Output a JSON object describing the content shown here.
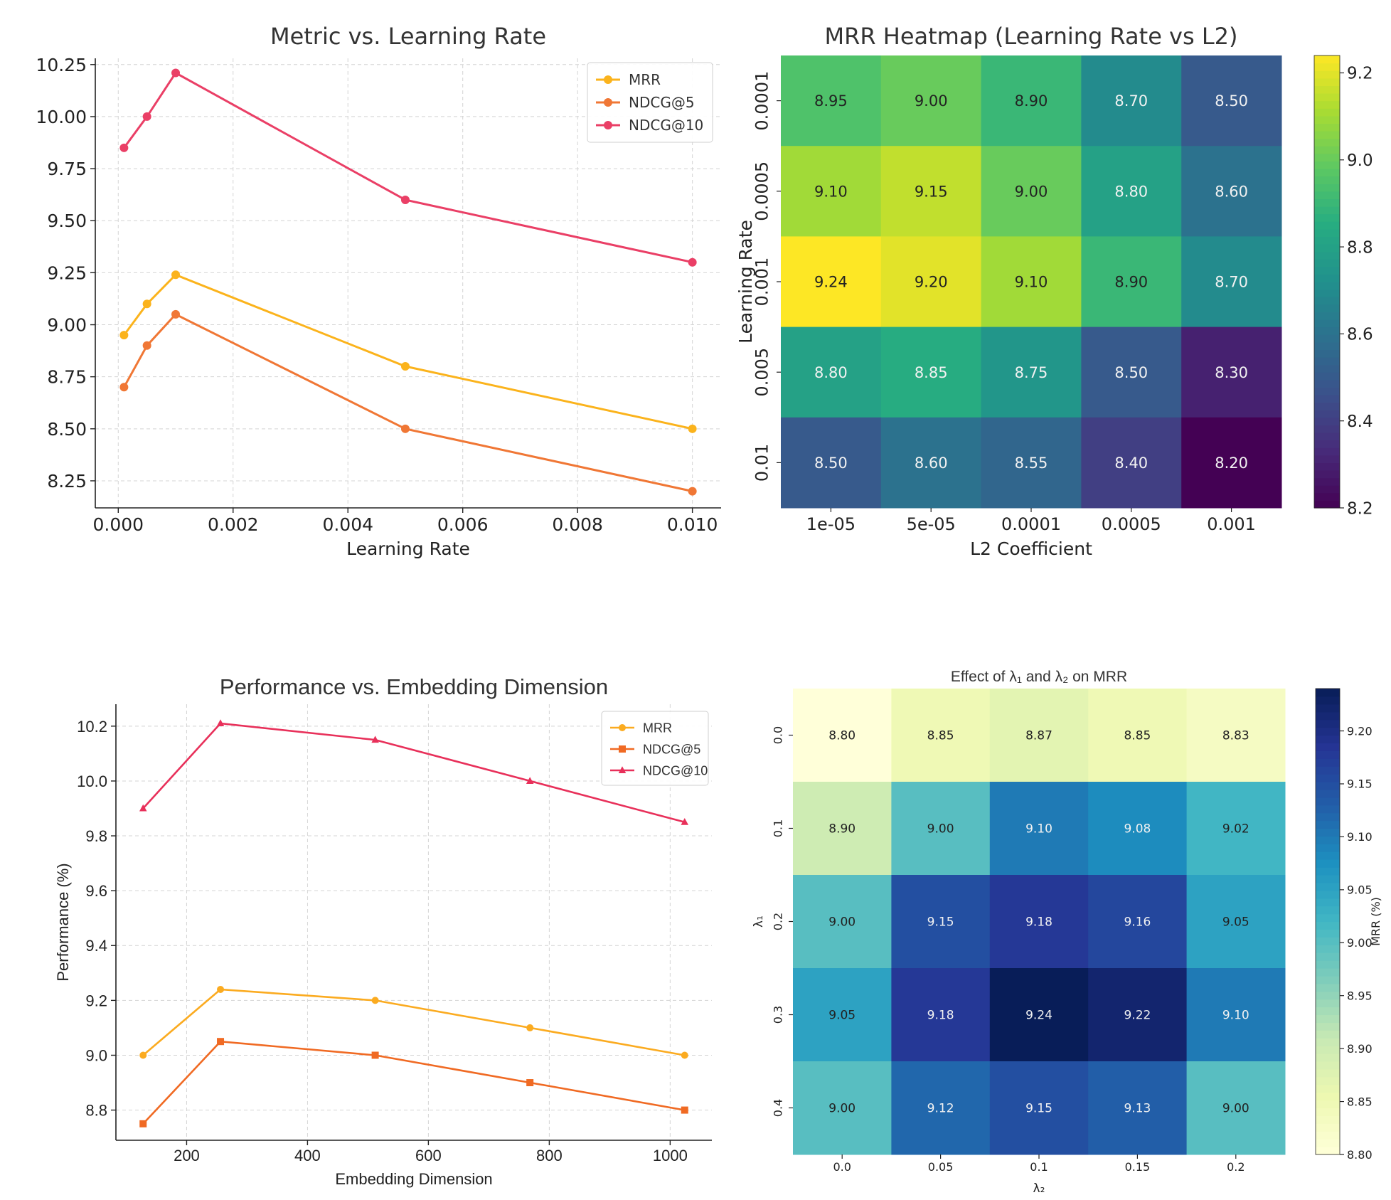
{
  "chart_data": [
    {
      "id": "lr_lines",
      "type": "line",
      "title": "Metric vs. Learning Rate",
      "xlabel": "Learning Rate",
      "ylabel": "",
      "xlim": [
        -0.0004,
        0.0105
      ],
      "ylim": [
        8.12,
        10.28
      ],
      "xticks": [
        0.0,
        0.002,
        0.004,
        0.006,
        0.008,
        0.01
      ],
      "xtick_labels": [
        "0.000",
        "0.002",
        "0.004",
        "0.006",
        "0.008",
        "0.010"
      ],
      "yticks": [
        8.25,
        8.5,
        8.75,
        9.0,
        9.25,
        9.5,
        9.75,
        10.0,
        10.25
      ],
      "ytick_labels": [
        "8.25",
        "8.50",
        "8.75",
        "9.00",
        "9.25",
        "9.50",
        "9.75",
        "10.00",
        "10.25"
      ],
      "x": [
        0.0001,
        0.0005,
        0.001,
        0.005,
        0.01
      ],
      "grid": true,
      "legend_position": "top-right",
      "series": [
        {
          "name": "MRR",
          "color": "#fbb31c",
          "marker": "circle",
          "values": [
            8.95,
            9.1,
            9.24,
            8.8,
            8.5
          ]
        },
        {
          "name": "NDCG@5",
          "color": "#f07735",
          "marker": "circle",
          "values": [
            8.7,
            8.9,
            9.05,
            8.5,
            8.2
          ]
        },
        {
          "name": "NDCG@10",
          "color": "#ea3f66",
          "marker": "circle",
          "values": [
            9.85,
            10.0,
            10.21,
            9.6,
            9.3
          ]
        }
      ]
    },
    {
      "id": "lr_heatmap",
      "type": "heatmap",
      "title": "MRR Heatmap (Learning Rate vs L2)",
      "xlabel": "L2 Coefficient",
      "ylabel": "Learning Rate",
      "x_categories": [
        "1e-05",
        "5e-05",
        "0.0001",
        "0.0005",
        "0.001"
      ],
      "y_categories": [
        "0.0001",
        "0.0005",
        "0.001",
        "0.005",
        "0.01"
      ],
      "values": [
        [
          8.95,
          9.0,
          8.9,
          8.7,
          8.5
        ],
        [
          9.1,
          9.15,
          9.0,
          8.8,
          8.6
        ],
        [
          9.24,
          9.2,
          9.1,
          8.9,
          8.7
        ],
        [
          8.8,
          8.85,
          8.75,
          8.5,
          8.3
        ],
        [
          8.5,
          8.6,
          8.55,
          8.4,
          8.2
        ]
      ],
      "value_labels": [
        [
          "8.95",
          "9.00",
          "8.90",
          "8.70",
          "8.50"
        ],
        [
          "9.10",
          "9.15",
          "9.00",
          "8.80",
          "8.60"
        ],
        [
          "9.24",
          "9.20",
          "9.10",
          "8.90",
          "8.70"
        ],
        [
          "8.80",
          "8.85",
          "8.75",
          "8.50",
          "8.30"
        ],
        [
          "8.50",
          "8.60",
          "8.55",
          "8.40",
          "8.20"
        ]
      ],
      "colormap": "viridis",
      "vmin": 8.2,
      "vmax": 9.24,
      "colorbar_ticks": [
        8.2,
        8.4,
        8.6,
        8.8,
        9.0,
        9.2
      ],
      "colorbar_tick_labels": [
        "8.2",
        "8.4",
        "8.6",
        "8.8",
        "9.0",
        "9.2"
      ],
      "colorbar_label": ""
    },
    {
      "id": "dim_lines",
      "type": "line",
      "title": "Performance vs. Embedding Dimension",
      "xlabel": "Embedding Dimension",
      "ylabel": "Performance (%)",
      "xlim": [
        83,
        1069
      ],
      "ylim": [
        8.69,
        10.28
      ],
      "xticks": [
        200,
        400,
        600,
        800,
        1000
      ],
      "xtick_labels": [
        "200",
        "400",
        "600",
        "800",
        "1000"
      ],
      "yticks": [
        8.8,
        9.0,
        9.2,
        9.4,
        9.6,
        9.8,
        10.0,
        10.2
      ],
      "ytick_labels": [
        "8.8",
        "9.0",
        "9.2",
        "9.4",
        "9.6",
        "9.8",
        "10.0",
        "10.2"
      ],
      "x": [
        128,
        256,
        512,
        768,
        1024
      ],
      "grid": true,
      "legend_position": "top-right",
      "series": [
        {
          "name": "MRR",
          "color": "#fbab20",
          "marker": "circle",
          "values": [
            9.0,
            9.24,
            9.2,
            9.1,
            9.0
          ]
        },
        {
          "name": "NDCG@5",
          "color": "#f06a23",
          "marker": "square",
          "values": [
            8.75,
            9.05,
            9.0,
            8.9,
            8.8
          ]
        },
        {
          "name": "NDCG@10",
          "color": "#e8305a",
          "marker": "triangle",
          "values": [
            9.9,
            10.21,
            10.15,
            10.0,
            9.85
          ]
        }
      ]
    },
    {
      "id": "lambda_heatmap",
      "type": "heatmap",
      "title": "Effect of λ₁ and λ₂ on MRR",
      "xlabel": "λ₂",
      "ylabel": "λ₁",
      "x_categories": [
        "0.0",
        "0.05",
        "0.1",
        "0.15",
        "0.2"
      ],
      "y_categories": [
        "0.0",
        "0.1",
        "0.2",
        "0.3",
        "0.4"
      ],
      "values": [
        [
          8.8,
          8.85,
          8.87,
          8.85,
          8.83
        ],
        [
          8.9,
          9.0,
          9.1,
          9.08,
          9.02
        ],
        [
          9.0,
          9.15,
          9.18,
          9.16,
          9.05
        ],
        [
          9.05,
          9.18,
          9.24,
          9.22,
          9.1
        ],
        [
          9.0,
          9.12,
          9.15,
          9.13,
          9.0
        ]
      ],
      "value_labels": [
        [
          "8.80",
          "8.85",
          "8.87",
          "8.85",
          "8.83"
        ],
        [
          "8.90",
          "9.00",
          "9.10",
          "9.08",
          "9.02"
        ],
        [
          "9.00",
          "9.15",
          "9.18",
          "9.16",
          "9.05"
        ],
        [
          "9.05",
          "9.18",
          "9.24",
          "9.22",
          "9.10"
        ],
        [
          "9.00",
          "9.12",
          "9.15",
          "9.13",
          "9.00"
        ]
      ],
      "colormap": "YlGnBu",
      "vmin": 8.8,
      "vmax": 9.24,
      "colorbar_ticks": [
        8.8,
        8.85,
        8.9,
        8.95,
        9.0,
        9.05,
        9.1,
        9.15,
        9.2
      ],
      "colorbar_tick_labels": [
        "8.80",
        "8.85",
        "8.90",
        "8.95",
        "9.00",
        "9.05",
        "9.10",
        "9.15",
        "9.20"
      ],
      "colorbar_label": "MRR (%)"
    }
  ]
}
